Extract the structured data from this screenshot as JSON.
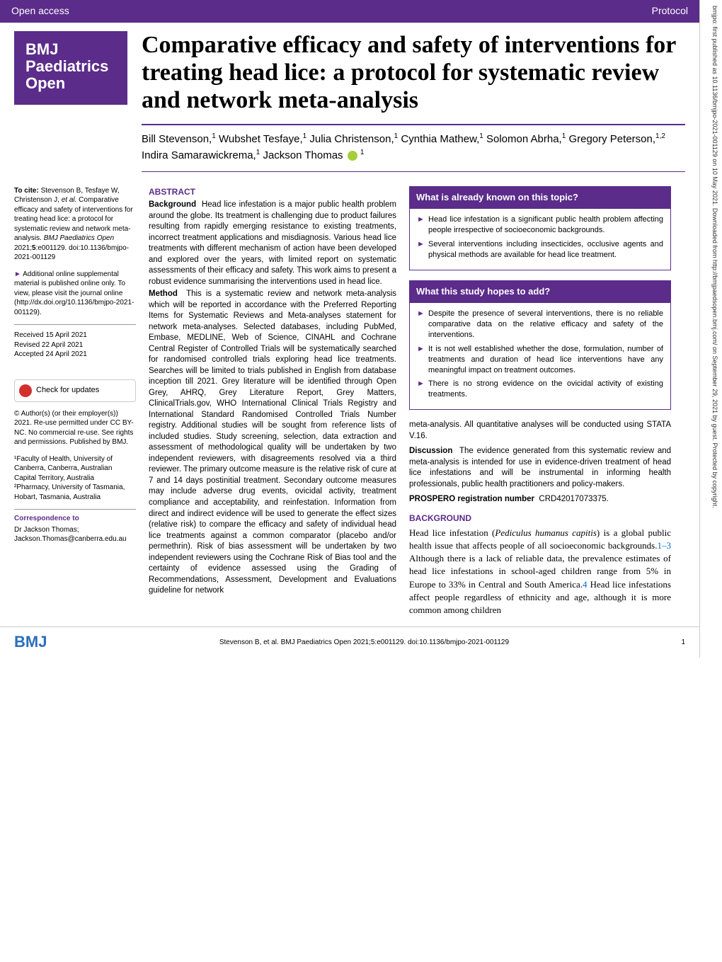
{
  "header": {
    "left": "Open access",
    "right": "Protocol"
  },
  "journal": {
    "name": "BMJ\nPaediatrics\nOpen"
  },
  "title": "Comparative efficacy and safety of interventions for treating head lice: a protocol for systematic review and network meta-analysis",
  "authors_html": "Bill Stevenson,<sup>1</sup> Wubshet Tesfaye,<sup>1</sup> Julia Christenson,<sup>1</sup> Cynthia Mathew,<sup>1</sup> Solomon Abrha,<sup>1</sup> Gregory Peterson,<sup>1,2</sup> Indira Samarawickrema,<sup>1</sup> Jackson Thomas",
  "cite": {
    "lead": "To cite:",
    "text": "Stevenson B, Tesfaye W, Christenson J, <i>et al.</i> Comparative efficacy and safety of interventions for treating head lice: a protocol for systematic review and network meta-analysis. <i>BMJ Paediatrics Open</i> 2021;<b>5</b>:e001129. doi:10.1136/bmjpo-2021-001129"
  },
  "supp": "Additional online supplemental material is published online only. To view, please visit the journal online (http://dx.doi.org/10.1136/bmjpo-2021-001129).",
  "dates": {
    "received": "Received 15 April 2021",
    "revised": "Revised 22 April 2021",
    "accepted": "Accepted 24 April 2021"
  },
  "check": "Check for updates",
  "copyright": "© Author(s) (or their employer(s)) 2021. Re-use permitted under CC BY-NC. No commercial re-use. See rights and permissions. Published by BMJ.",
  "affil": {
    "a1": "¹Faculty of Health, University of Canberra, Canberra, Australian Capital Territory, Australia",
    "a2": "²Pharmacy, University of Tasmania, Hobart, Tasmania, Australia"
  },
  "corr": {
    "head": "Correspondence to",
    "body": "Dr Jackson Thomas; Jackson.Thomas@canberra.edu.au"
  },
  "abstract": {
    "head": "ABSTRACT",
    "background_label": "Background",
    "background": "Head lice infestation is a major public health problem around the globe. Its treatment is challenging due to product failures resulting from rapidly emerging resistance to existing treatments, incorrect treatment applications and misdiagnosis. Various head lice treatments with different mechanism of action have been developed and explored over the years, with limited report on systematic assessments of their efficacy and safety. This work aims to present a robust evidence summarising the interventions used in head lice.",
    "method_label": "Method",
    "method": "This is a systematic review and network meta-analysis which will be reported in accordance with the Preferred Reporting Items for Systematic Reviews and Meta-analyses statement for network meta-analyses. Selected databases, including PubMed, Embase, MEDLINE, Web of Science, CINAHL and Cochrane Central Register of Controlled Trials will be systematically searched for randomised controlled trials exploring head lice treatments. Searches will be limited to trials published in English from database inception till 2021. Grey literature will be identified through Open Grey, AHRQ, Grey Literature Report, Grey Matters, ClinicalTrials.gov, WHO International Clinical Trials Registry and International Standard Randomised Controlled Trials Number registry. Additional studies will be sought from reference lists of included studies. Study screening, selection, data extraction and assessment of methodological quality will be undertaken by two independent reviewers, with disagreements resolved via a third reviewer. The primary outcome measure is the relative risk of cure at 7 and 14 days postinitial treatment. Secondary outcome measures may include adverse drug events, ovicidal activity, treatment compliance and acceptability, and reinfestation. Information from direct and indirect evidence will be used to generate the effect sizes (relative risk) to compare the efficacy and safety of individual head lice treatments against a common comparator (placebo and/or permethrin). Risk of bias assessment will be undertaken by two independent reviewers using the Cochrane Risk of Bias tool and the certainty of evidence assessed using the Grading of Recommendations, Assessment, Development and Evaluations guideline for network"
  },
  "box1": {
    "head": "What is already known on this topic?",
    "items": [
      "Head lice infestation is a significant public health problem affecting people irrespective of socioeconomic backgrounds.",
      "Several interventions including insecticides, occlusive agents and physical methods are available for head lice treatment."
    ]
  },
  "box2": {
    "head": "What this study hopes to add?",
    "items": [
      "Despite the presence of several interventions, there is no reliable comparative data on the relative efficacy and safety of the interventions.",
      "It is not well established whether the dose, formulation, number of treatments and duration of head lice interventions have any meaningful impact on treatment outcomes.",
      "There is no strong evidence on the ovicidal activity of existing treatments."
    ]
  },
  "right_cont": {
    "p1": "meta-analysis. All quantitative analyses will be conducted using STATA V.16.",
    "disc_label": "Discussion",
    "disc": "The evidence generated from this systematic review and meta-analysis is intended for use in evidence-driven treatment of head lice infestations and will be instrumental in informing health professionals, public health practitioners and policy-makers.",
    "reg_label": "PROSPERO registration number",
    "reg": "CRD42017073375."
  },
  "background": {
    "head": "BACKGROUND",
    "body": "Head lice infestation (<i>Pediculus humanus capitis</i>) is a global public health issue that affects people of all socioeconomic backgrounds.<a class='ref'>1–3</a> Although there is a lack of reliable data, the prevalence estimates of head lice infestations in school-aged children range from 5% in Europe to 33% in Central and South America.<a class='ref'>4</a> Head lice infestations affect people regardless of ethnicity and age, although it is more common among children"
  },
  "footer": {
    "logo": "BMJ",
    "citation": "Stevenson B, et al. BMJ Paediatrics Open 2021;5:e001129. doi:10.1136/bmjpo-2021-001129",
    "page": "1"
  },
  "sidebar": "bmjpo: first published as 10.1136/bmjpo-2021-001129 on 10 May 2021. Downloaded from http://bmjpaedsopen.bmj.com/ on September 29, 2021 by guest. Protected by copyright."
}
